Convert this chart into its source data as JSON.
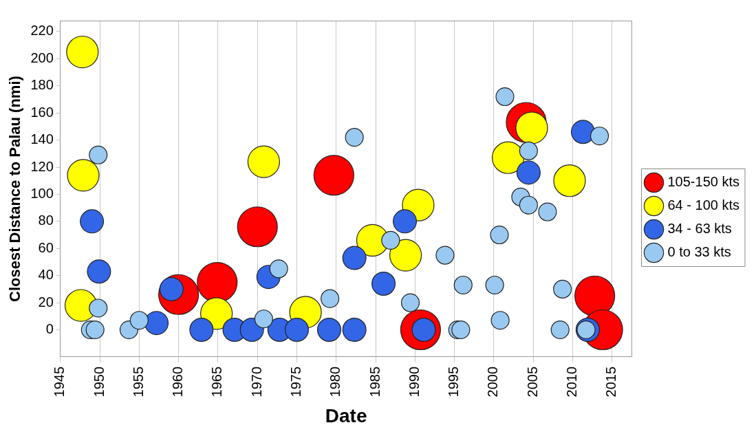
{
  "chart_data": {
    "type": "bubble",
    "xlabel": "Date",
    "ylabel": "Closest Distance to Palau (nmi)",
    "xlim": [
      1945,
      2017.5
    ],
    "xticks": [
      1945,
      1950,
      1955,
      1960,
      1965,
      1970,
      1975,
      1980,
      1985,
      1990,
      1995,
      2000,
      2005,
      2010,
      2015
    ],
    "ylim": [
      -20,
      228
    ],
    "yticks": [
      0,
      20,
      40,
      60,
      80,
      100,
      120,
      140,
      160,
      180,
      200,
      220
    ],
    "grid": "x",
    "legend": "right",
    "marker": "circle",
    "series": [
      {
        "name": "105-150 kts",
        "color": "#ff0000",
        "x": [
          1960,
          1964.9,
          1970,
          1979.7,
          1990.7,
          2004.1,
          2012.8,
          2013.8
        ],
        "values": [
          26,
          35,
          76,
          114,
          0,
          153,
          25,
          0
        ],
        "sizes": [
          1,
          1,
          1,
          1,
          1,
          1,
          1,
          1
        ]
      },
      {
        "name": "64 - 100 kts",
        "color": "#ffff00",
        "x": [
          1947.8,
          1947.9,
          1947.6,
          1964.8,
          1970.8,
          1976.1,
          1984.6,
          1988.8,
          1990.4,
          2004.8,
          2001.8,
          2009.6
        ],
        "values": [
          205,
          114,
          18,
          12,
          124,
          13,
          66,
          55,
          92,
          149,
          127,
          110
        ],
        "sizes": [
          0.63,
          0.63,
          0.63,
          0.63,
          0.63,
          0.63,
          0.63,
          0.63,
          0.63,
          0.63,
          0.63,
          0.63
        ]
      },
      {
        "name": "34 - 63 kts",
        "color": "#3366e6",
        "x": [
          1949,
          1949.9,
          1959.1,
          1957.2,
          1962.9,
          1967.1,
          1969.3,
          1971.4,
          1972.8,
          1975,
          1979.1,
          1982.3,
          1982.3,
          1986,
          1988.7,
          1991.1,
          2004.4,
          2011.3,
          2011.9
        ],
        "values": [
          80,
          43,
          30,
          5,
          0,
          0,
          0,
          39,
          0,
          0,
          0,
          0,
          53,
          34,
          80,
          0,
          116,
          146,
          0
        ],
        "sizes": [
          0.34,
          0.34,
          0.34,
          0.34,
          0.34,
          0.34,
          0.34,
          0.34,
          0.34,
          0.34,
          0.34,
          0.34,
          0.34,
          0.34,
          0.34,
          0.34,
          0.34,
          0.34,
          0.34
        ]
      },
      {
        "name": "0 to 33 kts",
        "color": "#99c9f0",
        "x": [
          1949.8,
          1949.8,
          1948.8,
          1949.4,
          1953.7,
          1955,
          1970.8,
          1972.7,
          1979.2,
          1982.3,
          1986.9,
          1989.4,
          1993.8,
          1996.1,
          1995.4,
          1995.8,
          2000.7,
          2000.1,
          2000.8,
          2001.4,
          2004.4,
          2003.4,
          2004.4,
          2006.8,
          2008.7,
          2008.4,
          2011.7,
          2013.4
        ],
        "values": [
          129,
          16,
          0,
          0,
          0,
          7,
          8,
          45,
          23,
          142,
          66,
          20,
          55,
          33,
          0,
          0,
          70,
          33,
          7,
          172,
          132,
          98,
          92,
          87,
          30,
          0,
          0,
          143
        ],
        "sizes": [
          0.2,
          0.2,
          0.2,
          0.2,
          0.2,
          0.2,
          0.2,
          0.2,
          0.2,
          0.2,
          0.2,
          0.2,
          0.2,
          0.2,
          0.2,
          0.2,
          0.2,
          0.2,
          0.2,
          0.2,
          0.2,
          0.2,
          0.2,
          0.2,
          0.2,
          0.2,
          0.2,
          0.2
        ]
      }
    ]
  }
}
